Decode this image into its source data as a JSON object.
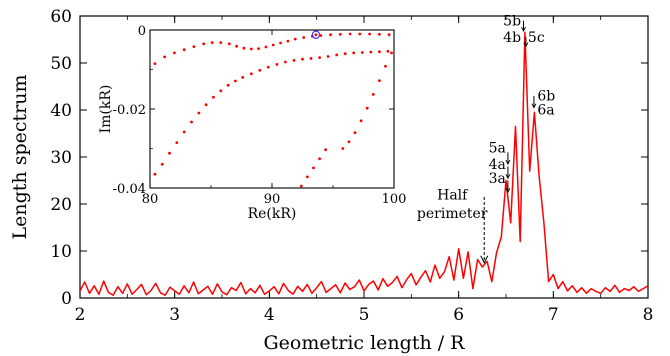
{
  "chart_data": [
    {
      "type": "line",
      "title": "",
      "xlabel": "Geometric length / R",
      "ylabel": "Length spectrum",
      "xlim": [
        2,
        8
      ],
      "ylim": [
        0,
        60
      ],
      "xticks": [
        "2",
        "3",
        "4",
        "5",
        "6",
        "7",
        "8"
      ],
      "yticks": [
        "0",
        "10",
        "20",
        "30",
        "40",
        "50",
        "60"
      ],
      "grid": false,
      "line_color": "#ff0000",
      "series": [
        {
          "x": [
            2.0,
            2.05,
            2.1,
            2.15,
            2.2,
            2.25,
            2.3,
            2.35,
            2.4,
            2.45,
            2.5,
            2.55,
            2.6,
            2.65,
            2.7,
            2.75,
            2.8,
            2.85,
            2.9,
            2.95,
            3.0,
            3.05,
            3.1,
            3.15,
            3.2,
            3.25,
            3.3,
            3.35,
            3.4,
            3.45,
            3.5,
            3.55,
            3.6,
            3.65,
            3.7,
            3.75,
            3.8,
            3.85,
            3.9,
            3.95,
            4.0,
            4.05,
            4.1,
            4.15,
            4.2,
            4.25,
            4.3,
            4.35,
            4.4,
            4.45,
            4.5,
            4.55,
            4.6,
            4.65,
            4.7,
            4.75,
            4.8,
            4.85,
            4.9,
            4.95,
            5.0,
            5.05,
            5.1,
            5.15,
            5.2,
            5.25,
            5.3,
            5.35,
            5.4,
            5.45,
            5.5,
            5.55,
            5.6,
            5.65,
            5.7,
            5.75,
            5.8,
            5.85,
            5.9,
            5.95,
            6.0,
            6.05,
            6.1,
            6.15,
            6.2,
            6.25,
            6.3,
            6.35,
            6.4,
            6.45,
            6.5,
            6.55,
            6.6,
            6.65,
            6.7,
            6.75,
            6.8,
            6.85,
            6.9,
            6.95,
            7.0,
            7.05,
            7.1,
            7.15,
            7.2,
            7.25,
            7.3,
            7.35,
            7.4,
            7.45,
            7.5,
            7.55,
            7.6,
            7.65,
            7.7,
            7.75,
            7.8,
            7.85,
            7.9,
            7.95,
            8.0
          ],
          "y": [
            1.5,
            3.4,
            1.0,
            2.6,
            0.8,
            3.6,
            1.2,
            0.6,
            2.4,
            1.0,
            3.0,
            0.8,
            1.8,
            2.9,
            0.7,
            1.6,
            3.1,
            1.1,
            0.6,
            2.3,
            1.5,
            0.8,
            2.6,
            1.1,
            3.4,
            0.9,
            1.7,
            2.5,
            0.8,
            3.0,
            1.3,
            0.7,
            2.2,
            1.6,
            3.3,
            0.9,
            2.0,
            1.1,
            2.7,
            0.8,
            1.5,
            2.4,
            0.9,
            3.1,
            1.6,
            0.8,
            2.5,
            1.4,
            2.9,
            1.0,
            2.2,
            3.5,
            1.2,
            2.0,
            2.8,
            1.1,
            3.2,
            1.8,
            2.4,
            3.8,
            1.5,
            2.9,
            3.6,
            1.7,
            4.1,
            2.5,
            3.3,
            4.6,
            2.2,
            3.9,
            5.2,
            2.8,
            4.4,
            5.8,
            3.4,
            7.0,
            4.2,
            5.6,
            8.8,
            3.8,
            10.5,
            4.2,
            9.8,
            2.0,
            8.2,
            6.6,
            7.8,
            3.5,
            9.6,
            13.0,
            25.0,
            16.0,
            36.5,
            12.0,
            56.5,
            27.0,
            39.5,
            26.0,
            16.0,
            3.5,
            5.0,
            2.0,
            3.5,
            1.5,
            2.6,
            1.2,
            2.2,
            1.0,
            2.0,
            1.4,
            1.0,
            2.2,
            1.4,
            2.7,
            1.2,
            2.0,
            1.6,
            2.4,
            1.4,
            2.0,
            2.6
          ]
        }
      ],
      "annotations": [
        {
          "text": "Half",
          "x": 6.27,
          "y": 21
        },
        {
          "text": "perimeter",
          "x": 6.27,
          "y": 17
        },
        {
          "text": "5b",
          "x": 6.68,
          "y": 58
        },
        {
          "text": "4b",
          "x": 6.68,
          "y": 54.5
        },
        {
          "text": "5c",
          "x": 6.7,
          "y": 54.5
        },
        {
          "text": "6b",
          "x": 6.8,
          "y": 42
        },
        {
          "text": "6a",
          "x": 6.8,
          "y": 39
        },
        {
          "text": "5a",
          "x": 6.52,
          "y": 31
        },
        {
          "text": "4a",
          "x": 6.52,
          "y": 27.5
        },
        {
          "text": "3a",
          "x": 6.52,
          "y": 24.5
        }
      ]
    },
    {
      "type": "scatter",
      "title": "",
      "xlabel": "Re(kR)",
      "ylabel": "Im(kR)",
      "xlim": [
        80,
        100
      ],
      "ylim": [
        -0.04,
        0
      ],
      "xticks": [
        "80",
        "90",
        "100"
      ],
      "yticks": [
        "0",
        "-0.02",
        "-0.04"
      ],
      "point_color": "#ff0000",
      "highlight_color": "#3b3bff",
      "series": [
        {
          "x": [
            80.4,
            81.2,
            82.0,
            82.8,
            83.6,
            84.4,
            85.1,
            85.8,
            86.5,
            87.1,
            87.7,
            88.3,
            88.9,
            89.5,
            90.1,
            90.7,
            91.3,
            91.9,
            92.6,
            93.3,
            94.0,
            94.8,
            95.6,
            96.4,
            97.2,
            98.0,
            98.8,
            99.6
          ],
          "y": [
            -0.0085,
            -0.0068,
            -0.0058,
            -0.005,
            -0.0042,
            -0.0035,
            -0.0032,
            -0.0032,
            -0.0035,
            -0.0041,
            -0.0046,
            -0.0048,
            -0.0047,
            -0.0043,
            -0.0038,
            -0.0033,
            -0.0028,
            -0.0023,
            -0.0019,
            -0.0016,
            -0.0014,
            -0.0012,
            -0.0011,
            -0.001,
            -0.001,
            -0.001,
            -0.0011,
            -0.0012
          ]
        },
        {
          "x": [
            80.4,
            81.0,
            81.6,
            82.2,
            82.8,
            83.4,
            84.0,
            84.6,
            85.2,
            85.8,
            86.4,
            87.0,
            87.6,
            88.3,
            89.0,
            89.7,
            90.4,
            91.1,
            91.8,
            92.5,
            93.2,
            93.9,
            94.6,
            95.3,
            96.0,
            96.7,
            97.4,
            98.1,
            98.8,
            99.5
          ],
          "y": [
            -0.0365,
            -0.034,
            -0.0312,
            -0.0285,
            -0.0258,
            -0.0233,
            -0.021,
            -0.0189,
            -0.017,
            -0.0154,
            -0.014,
            -0.0129,
            -0.012,
            -0.0111,
            -0.0102,
            -0.0094,
            -0.0087,
            -0.0081,
            -0.0077,
            -0.0074,
            -0.0072,
            -0.007,
            -0.0067,
            -0.0063,
            -0.006,
            -0.0058,
            -0.0057,
            -0.0056,
            -0.0055,
            -0.0054
          ]
        },
        {
          "x": [
            95.8,
            96.3,
            96.8,
            97.3,
            97.8,
            98.3,
            98.8,
            99.3,
            99.8
          ],
          "y": [
            -0.03,
            -0.0283,
            -0.026,
            -0.023,
            -0.0198,
            -0.0163,
            -0.0128,
            -0.0092,
            -0.0058
          ]
        },
        {
          "x": [
            92.4,
            92.9,
            93.4,
            93.9,
            94.4
          ],
          "y": [
            -0.0395,
            -0.0372,
            -0.0349,
            -0.0326,
            -0.0303
          ]
        }
      ],
      "highlight": {
        "x": 93.6,
        "y": -0.0012
      }
    }
  ]
}
